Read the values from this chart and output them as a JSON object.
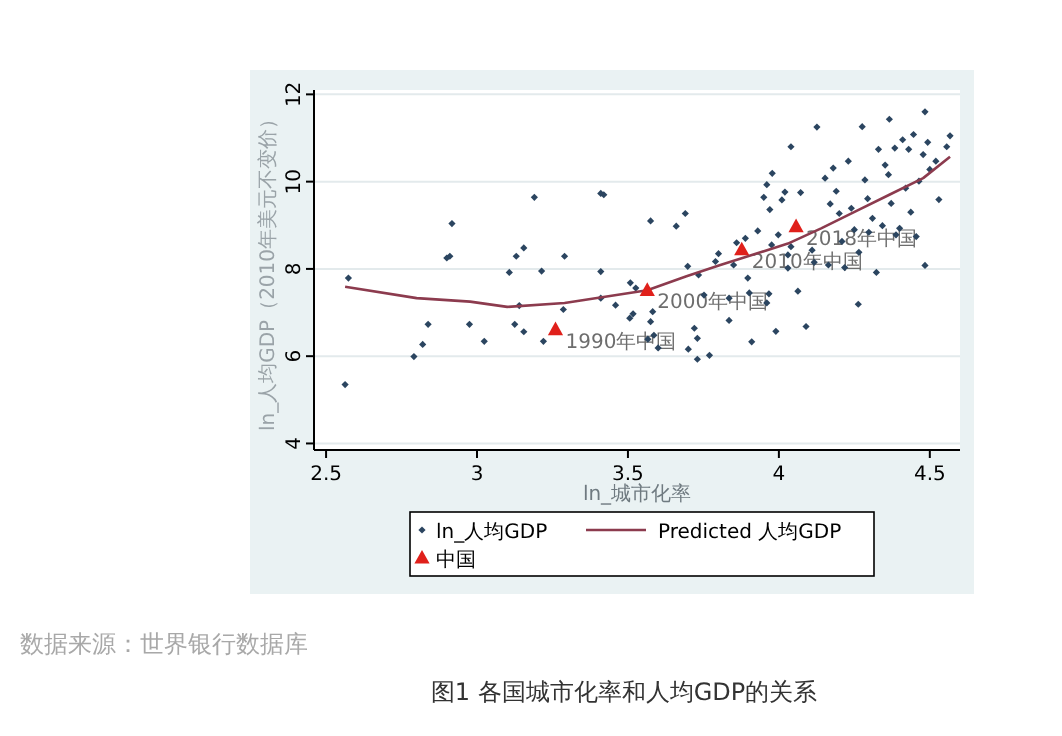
{
  "chart_data": {
    "type": "scatter",
    "title": "图1 各国城市化率和人均GDP的关系",
    "xlabel": "ln_城市化率",
    "ylabel": "ln_人均GDP（2010年美元不变价）",
    "xlim": [
      2.46,
      4.6
    ],
    "ylim": [
      3.85,
      12.1
    ],
    "xticks": [
      2.5,
      3,
      3.5,
      4,
      4.5
    ],
    "yticks": [
      4,
      6,
      8,
      10,
      12
    ],
    "grid": "y",
    "legend": "bottom",
    "series": [
      {
        "name": "ln_人均GDP",
        "marker": "diamond",
        "color": "#2b4560",
        "x": [
          2.563,
          2.574,
          2.791,
          2.82,
          2.838,
          2.9,
          2.91,
          2.917,
          2.975,
          3.024,
          3.107,
          3.125,
          3.13,
          3.14,
          3.155,
          3.155,
          3.19,
          3.214,
          3.29,
          3.286,
          3.22,
          3.41,
          3.42,
          3.41,
          3.41,
          3.459,
          3.508,
          3.526,
          3.506,
          3.517,
          3.575,
          3.575,
          3.582,
          3.566,
          3.586,
          3.6,
          3.66,
          3.69,
          3.698,
          3.7,
          3.72,
          3.73,
          3.73,
          3.734,
          3.752,
          3.77,
          3.79,
          3.8,
          3.835,
          3.835,
          3.85,
          3.86,
          3.889,
          3.897,
          3.902,
          3.91,
          3.93,
          3.95,
          3.96,
          3.97,
          3.978,
          3.976,
          3.967,
          3.96,
          3.99,
          3.998,
          4.01,
          4.02,
          4.03,
          4.03,
          4.04,
          4.04,
          4.063,
          4.072,
          4.09,
          4.11,
          4.117,
          4.126,
          4.153,
          4.17,
          4.164,
          4.18,
          4.19,
          4.2,
          4.209,
          4.218,
          4.23,
          4.24,
          4.25,
          4.263,
          4.265,
          4.276,
          4.285,
          4.294,
          4.298,
          4.31,
          4.323,
          4.33,
          4.343,
          4.352,
          4.363,
          4.366,
          4.372,
          4.384,
          4.388,
          4.4,
          4.41,
          4.42,
          4.43,
          4.437,
          4.446,
          4.455,
          4.464,
          4.478,
          4.484,
          4.484,
          4.493,
          4.5,
          4.52,
          4.53,
          4.556,
          4.567
        ],
        "values": [
          5.35,
          7.79,
          5.99,
          6.27,
          6.73,
          8.25,
          8.29,
          9.04,
          6.73,
          6.34,
          7.92,
          6.73,
          8.29,
          7.16,
          8.48,
          6.56,
          9.64,
          7.95,
          8.29,
          7.07,
          6.34,
          9.73,
          9.7,
          7.94,
          7.33,
          7.17,
          7.68,
          7.56,
          6.87,
          6.97,
          9.1,
          6.79,
          7.02,
          6.39,
          6.48,
          6.19,
          8.98,
          9.27,
          8.06,
          6.16,
          6.64,
          6.41,
          5.93,
          7.86,
          7.4,
          6.02,
          8.17,
          8.35,
          6.82,
          7.33,
          8.09,
          8.6,
          8.7,
          7.79,
          7.45,
          6.33,
          8.87,
          9.64,
          9.93,
          9.36,
          10.19,
          8.55,
          7.43,
          7.22,
          6.57,
          8.78,
          9.58,
          9.76,
          8.32,
          8.02,
          8.51,
          10.8,
          7.49,
          9.75,
          6.68,
          8.43,
          8.15,
          11.25,
          10.08,
          9.49,
          8.09,
          10.31,
          9.78,
          9.27,
          8.63,
          8.03,
          10.47,
          9.39,
          8.9,
          7.19,
          8.38,
          11.26,
          10.04,
          9.61,
          8.84,
          9.16,
          7.92,
          10.74,
          8.99,
          10.38,
          10.16,
          11.43,
          9.5,
          10.77,
          8.78,
          8.93,
          10.96,
          9.85,
          10.74,
          9.3,
          11.08,
          8.74,
          10.01,
          10.62,
          11.6,
          8.08,
          10.9,
          10.28,
          10.47,
          9.59,
          10.8,
          11.05
        ]
      },
      {
        "name": "Predicted 人均GDP",
        "type": "line",
        "marker": "none",
        "color": "#8c3b4e",
        "x": [
          2.563,
          2.8,
          2.977,
          3.1,
          3.29,
          3.564,
          3.694,
          3.806,
          4.03,
          4.14,
          4.254,
          4.366,
          4.478,
          4.567
        ],
        "values": [
          7.59,
          7.33,
          7.25,
          7.13,
          7.22,
          7.51,
          7.83,
          8.09,
          8.58,
          8.93,
          9.32,
          9.7,
          10.08,
          10.57
        ]
      },
      {
        "name": "中国",
        "marker": "triangle",
        "color": "#e0201b",
        "x": [
          3.26,
          3.564,
          3.877,
          4.057
        ],
        "values": [
          6.61,
          7.51,
          8.44,
          8.97
        ]
      }
    ],
    "annotations": [
      {
        "text": "1990年中国",
        "x": 3.26,
        "y": 6.61
      },
      {
        "text": "2000年中国",
        "x": 3.564,
        "y": 7.51
      },
      {
        "text": "2010年中国",
        "x": 3.877,
        "y": 8.44
      },
      {
        "text": "2018年中国",
        "x": 4.057,
        "y": 8.97
      },
      "数据来源：世界银行数据库"
    ]
  }
}
